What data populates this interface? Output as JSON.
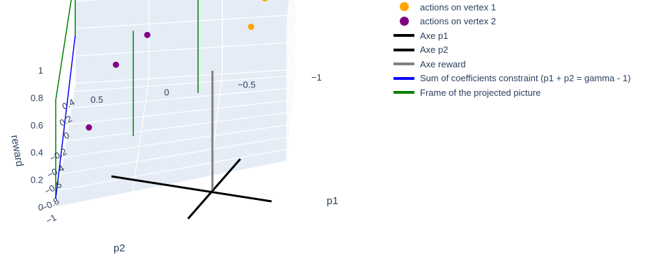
{
  "chart_data": {
    "type": "scatter3d",
    "axes": {
      "x": {
        "title": "p1",
        "ticks": [
          "−1",
          "−0.5",
          "0",
          "0.5"
        ],
        "range": [
          -1,
          0.5
        ]
      },
      "y": {
        "title": "p2",
        "ticks": [
          "−1",
          "−0.8",
          "−0.6",
          "−0.4",
          "−0.2",
          "0",
          "0.2",
          "0.4"
        ],
        "range": [
          -1,
          0.5
        ]
      },
      "z": {
        "title": "reward",
        "ticks": [
          "0",
          "0.2",
          "0.4",
          "0.6",
          "0.8",
          "1"
        ],
        "range": [
          0,
          1
        ]
      }
    },
    "grid": true,
    "legend_position": "top-right",
    "series": [
      {
        "name": "actions on vertex 1",
        "mode": "markers",
        "color": "#FFA500",
        "points": [
          {
            "x": -0.8,
            "y": 0.25,
            "z": 0.65
          },
          {
            "x": -0.9,
            "y": 0.35,
            "z": 0.72
          },
          {
            "x": -0.7,
            "y": 0.4,
            "z": 0.38
          }
        ]
      },
      {
        "name": "actions on vertex 2",
        "mode": "markers",
        "color": "#800080",
        "points": [
          {
            "x": 0.3,
            "y": -0.8,
            "z": 0.42
          },
          {
            "x": 0.15,
            "y": -0.45,
            "z": 0.65
          },
          {
            "x": -0.05,
            "y": -0.35,
            "z": 0.78
          }
        ]
      },
      {
        "name": "Axe p1",
        "mode": "lines",
        "color": "#000000",
        "points": []
      },
      {
        "name": "Axe p2",
        "mode": "lines",
        "color": "#000000",
        "points": []
      },
      {
        "name": "Axe reward",
        "mode": "lines",
        "color": "#808080",
        "points": []
      },
      {
        "name": "Sum of coefficients constraint (p1 + p2 = gamma - 1)",
        "mode": "lines",
        "color": "#0000FF",
        "points": []
      },
      {
        "name": "Frame of the projected picture",
        "mode": "lines",
        "color": "#008000",
        "points": []
      }
    ]
  }
}
